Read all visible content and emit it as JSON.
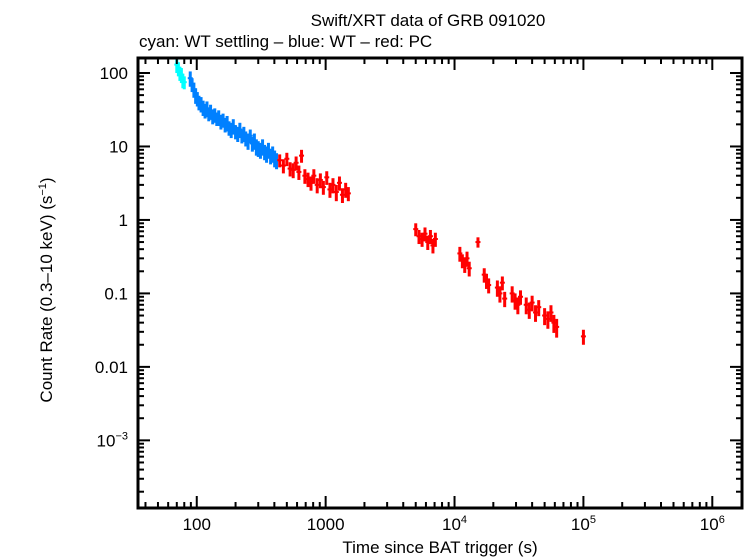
{
  "chart_data": {
    "type": "scatter",
    "title": "Swift/XRT data of GRB 091020",
    "subtitle": "cyan: WT settling – blue: WT – red: PC",
    "xlabel": "Time since BAT trigger (s)",
    "ylabel": "Count Rate (0.3–10 keV) (s⁻¹)",
    "xscale": "log",
    "yscale": "log",
    "xlim": [
      35,
      1700000
    ],
    "ylim": [
      0.00012,
      160
    ],
    "grid": false,
    "x_ticks": [
      {
        "value": 100,
        "label": "100",
        "exp": ""
      },
      {
        "value": 1000,
        "label": "1000",
        "exp": ""
      },
      {
        "value": 10000,
        "label": "10",
        "exp": "4"
      },
      {
        "value": 100000,
        "label": "10",
        "exp": "5"
      },
      {
        "value": 1000000,
        "label": "10",
        "exp": "6"
      }
    ],
    "y_ticks": [
      {
        "value": 100,
        "label": "100",
        "exp": ""
      },
      {
        "value": 10,
        "label": "10",
        "exp": ""
      },
      {
        "value": 1,
        "label": "1",
        "exp": ""
      },
      {
        "value": 0.1,
        "label": "0.1",
        "exp": ""
      },
      {
        "value": 0.01,
        "label": "0.01",
        "exp": ""
      },
      {
        "value": 0.001,
        "label": "10",
        "exp": "−3"
      }
    ],
    "series": [
      {
        "name": "WT settling",
        "color": "#00ffff",
        "points": [
          [
            70,
            130,
            30
          ],
          [
            72,
            115,
            25
          ],
          [
            74,
            100,
            22
          ],
          [
            76,
            95,
            22
          ],
          [
            78,
            80,
            18
          ],
          [
            80,
            75,
            15
          ]
        ]
      },
      {
        "name": "WT",
        "color": "#0080ff",
        "points": [
          [
            89,
            85,
            20
          ],
          [
            92,
            70,
            15
          ],
          [
            95,
            60,
            14
          ],
          [
            98,
            50,
            12
          ],
          [
            101,
            45,
            10
          ],
          [
            104,
            40,
            9
          ],
          [
            108,
            38,
            9
          ],
          [
            112,
            34,
            8
          ],
          [
            116,
            31,
            7
          ],
          [
            120,
            33,
            8
          ],
          [
            124,
            28,
            6
          ],
          [
            128,
            30,
            7
          ],
          [
            133,
            26,
            6
          ],
          [
            138,
            27,
            6
          ],
          [
            143,
            24,
            5
          ],
          [
            148,
            25,
            6
          ],
          [
            154,
            22,
            5
          ],
          [
            160,
            23,
            5
          ],
          [
            166,
            20,
            4.5
          ],
          [
            172,
            21,
            5
          ],
          [
            178,
            18,
            4
          ],
          [
            185,
            17,
            4
          ],
          [
            192,
            19,
            4.5
          ],
          [
            200,
            16,
            3.5
          ],
          [
            208,
            15,
            3.5
          ],
          [
            216,
            17,
            4
          ],
          [
            224,
            14,
            3
          ],
          [
            232,
            15,
            3.5
          ],
          [
            240,
            13,
            3
          ],
          [
            250,
            12,
            3
          ],
          [
            260,
            14,
            3
          ],
          [
            270,
            11,
            2.5
          ],
          [
            280,
            12,
            3
          ],
          [
            290,
            10,
            2.5
          ],
          [
            300,
            9.5,
            2.3
          ],
          [
            312,
            9,
            2.2
          ],
          [
            324,
            10,
            2.5
          ],
          [
            336,
            8.5,
            2
          ],
          [
            348,
            8,
            2
          ],
          [
            360,
            9,
            2.2
          ],
          [
            374,
            7.5,
            1.8
          ],
          [
            388,
            8,
            2
          ],
          [
            402,
            7,
            1.8
          ],
          [
            416,
            6.5,
            1.6
          ]
        ]
      },
      {
        "name": "PC",
        "color": "#ff0000",
        "points": [
          [
            440,
            6.5,
            1.3
          ],
          [
            470,
            5.5,
            1.2
          ],
          [
            500,
            6.8,
            1.4
          ],
          [
            530,
            5.0,
            1.1
          ],
          [
            560,
            4.8,
            1.1
          ],
          [
            590,
            6.0,
            1.3
          ],
          [
            620,
            4.5,
            1.0
          ],
          [
            650,
            7.5,
            1.5
          ],
          [
            690,
            4.0,
            0.9
          ],
          [
            730,
            3.6,
            0.8
          ],
          [
            770,
            3.2,
            0.7
          ],
          [
            810,
            4.0,
            0.9
          ],
          [
            860,
            3.0,
            0.7
          ],
          [
            910,
            3.5,
            0.8
          ],
          [
            960,
            2.8,
            0.6
          ],
          [
            1020,
            3.8,
            0.8
          ],
          [
            1080,
            2.6,
            0.6
          ],
          [
            1140,
            3.0,
            0.7
          ],
          [
            1210,
            2.4,
            0.6
          ],
          [
            1280,
            3.2,
            0.7
          ],
          [
            1350,
            2.2,
            0.5
          ],
          [
            1430,
            2.6,
            0.6
          ],
          [
            1500,
            2.3,
            0.5
          ],
          [
            5000,
            0.75,
            0.15
          ],
          [
            5300,
            0.6,
            0.13
          ],
          [
            5600,
            0.55,
            0.12
          ],
          [
            5900,
            0.65,
            0.14
          ],
          [
            6200,
            0.5,
            0.11
          ],
          [
            6500,
            0.6,
            0.13
          ],
          [
            6800,
            0.45,
            0.1
          ],
          [
            7100,
            0.55,
            0.12
          ],
          [
            11000,
            0.35,
            0.08
          ],
          [
            11500,
            0.28,
            0.06
          ],
          [
            12000,
            0.25,
            0.06
          ],
          [
            12500,
            0.3,
            0.07
          ],
          [
            13000,
            0.22,
            0.05
          ],
          [
            15200,
            0.5,
            0.08
          ],
          [
            17000,
            0.18,
            0.04
          ],
          [
            17700,
            0.15,
            0.035
          ],
          [
            18400,
            0.13,
            0.03
          ],
          [
            21500,
            0.12,
            0.03
          ],
          [
            22500,
            0.1,
            0.025
          ],
          [
            23500,
            0.14,
            0.03
          ],
          [
            24500,
            0.085,
            0.02
          ],
          [
            28000,
            0.1,
            0.025
          ],
          [
            29500,
            0.08,
            0.02
          ],
          [
            31000,
            0.07,
            0.018
          ],
          [
            32500,
            0.09,
            0.02
          ],
          [
            36000,
            0.07,
            0.018
          ],
          [
            38000,
            0.06,
            0.015
          ],
          [
            40000,
            0.075,
            0.018
          ],
          [
            42500,
            0.055,
            0.014
          ],
          [
            45000,
            0.065,
            0.016
          ],
          [
            50000,
            0.05,
            0.013
          ],
          [
            53000,
            0.045,
            0.012
          ],
          [
            56000,
            0.055,
            0.014
          ],
          [
            59000,
            0.04,
            0.011
          ],
          [
            62000,
            0.035,
            0.01
          ],
          [
            100000,
            0.026,
            0.006
          ]
        ]
      }
    ]
  }
}
